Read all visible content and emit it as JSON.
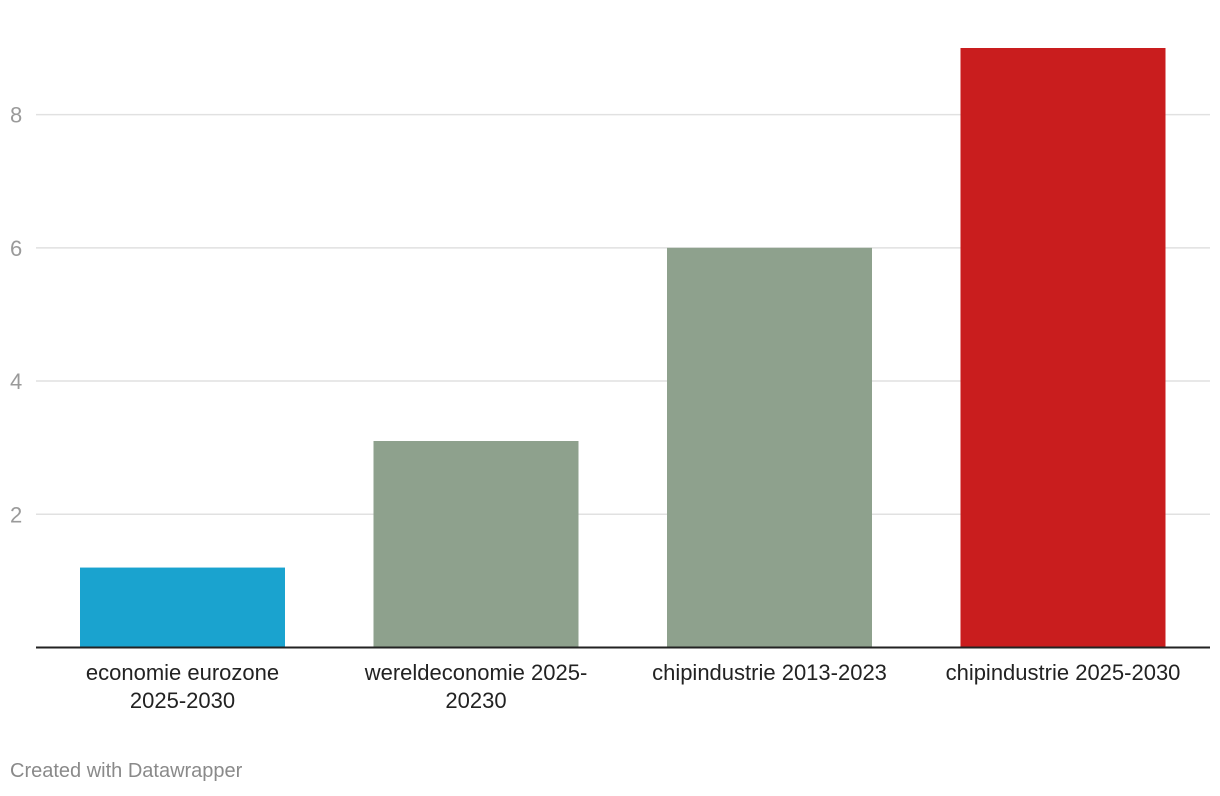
{
  "chart_data": {
    "type": "bar",
    "categories": [
      [
        "economie eurozone",
        "2025-2030"
      ],
      [
        "wereldeconomie 2025-",
        "20230"
      ],
      [
        "chipindustrie 2013-2023"
      ],
      [
        "chipindustrie 2025-2030"
      ]
    ],
    "values": [
      1.2,
      3.1,
      6.0,
      9.0
    ],
    "colors": [
      "#1aa3cf",
      "#8ea18d",
      "#8ea18d",
      "#c91d1e"
    ],
    "yticks": [
      2,
      4,
      6,
      8
    ],
    "ylim": [
      0,
      9
    ],
    "grid": true,
    "title": "",
    "xlabel": "",
    "ylabel": ""
  },
  "footer": {
    "credit": "Created with Datawrapper"
  }
}
